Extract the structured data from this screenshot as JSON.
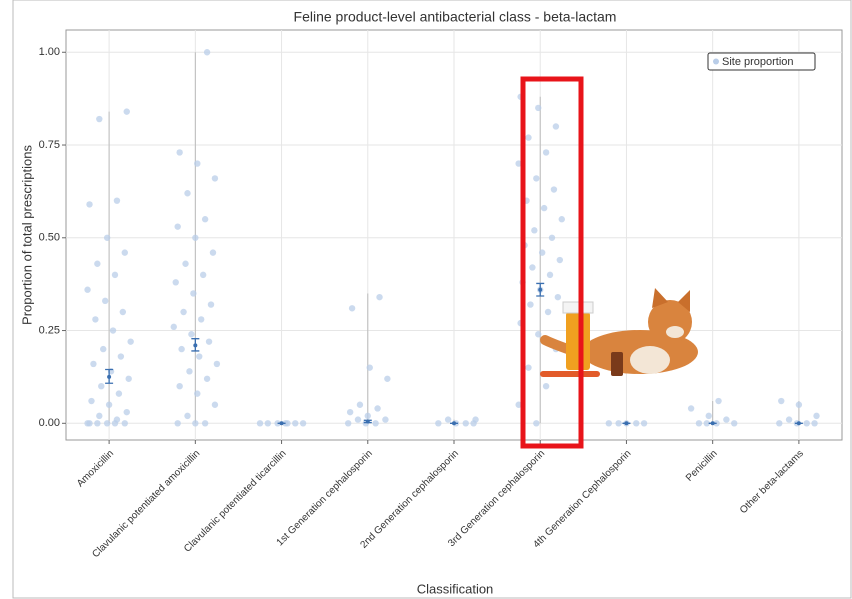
{
  "chart_data": {
    "type": "strip",
    "title": "Feline product-level antibacterial class - beta-lactam",
    "xlabel": "Classification",
    "ylabel": "Proportion of total prescriptions",
    "categories": [
      "Amoxicillin",
      "Clavulanic potentiated amoxicillin",
      "Clavulanic potentiated ticarcillin",
      "1st Generation cephalosporin",
      "2nd Generation cephalosporin",
      "3rd Generation cephalosporin",
      "4th Generation Cephalosporin",
      "Penicillin",
      "Other beta-lactams"
    ],
    "ylim": [
      -0.045,
      1.06
    ],
    "yticks": [
      {
        "value": 0,
        "label": "0.00"
      },
      {
        "value": 0.25,
        "label": "0.25"
      },
      {
        "value": 0.5,
        "label": "0.50"
      },
      {
        "value": 0.75,
        "label": "0.75"
      },
      {
        "value": 1,
        "label": "1.00"
      }
    ],
    "grid": true,
    "legend": "top-right",
    "series": [
      {
        "name": "Site proportion",
        "color": "#b9cde8",
        "values": [
          [
            0,
            0,
            0,
            0,
            0,
            0,
            0.01,
            0.02,
            0.03,
            0.05,
            0.06,
            0.08,
            0.1,
            0.12,
            0.14,
            0.16,
            0.18,
            0.2,
            0.22,
            0.25,
            0.28,
            0.3,
            0.33,
            0.36,
            0.4,
            0.43,
            0.46,
            0.5,
            0.59,
            0.6,
            0.82,
            0.84
          ],
          [
            0,
            0,
            0,
            0.02,
            0.05,
            0.08,
            0.1,
            0.12,
            0.14,
            0.16,
            0.18,
            0.2,
            0.22,
            0.24,
            0.26,
            0.28,
            0.3,
            0.32,
            0.35,
            0.38,
            0.4,
            0.43,
            0.46,
            0.5,
            0.53,
            0.55,
            0.62,
            0.66,
            0.7,
            0.73,
            1.0
          ],
          [
            0,
            0,
            0,
            0,
            0,
            0,
            0
          ],
          [
            0,
            0,
            0,
            0.01,
            0.01,
            0.02,
            0.03,
            0.04,
            0.05,
            0.12,
            0.15,
            0.31,
            0.34
          ],
          [
            0,
            0,
            0,
            0,
            0.01,
            0.01
          ],
          [
            0,
            0.05,
            0.1,
            0.15,
            0.2,
            0.24,
            0.27,
            0.3,
            0.32,
            0.34,
            0.36,
            0.38,
            0.4,
            0.42,
            0.44,
            0.46,
            0.48,
            0.5,
            0.52,
            0.55,
            0.58,
            0.6,
            0.63,
            0.66,
            0.7,
            0.73,
            0.77,
            0.8,
            0.85,
            0.88
          ],
          [
            0,
            0,
            0,
            0,
            0
          ],
          [
            0,
            0,
            0,
            0,
            0.01,
            0.02,
            0.04,
            0.06
          ],
          [
            0,
            0,
            0,
            0,
            0.01,
            0.02,
            0.05,
            0.06
          ]
        ]
      }
    ],
    "mins": [
      0,
      0,
      0,
      0,
      0,
      0,
      0,
      0,
      0
    ],
    "maxs": [
      0.84,
      1.0,
      0,
      0.35,
      0.01,
      0.88,
      0,
      0.06,
      0.06
    ],
    "means": [
      0.125,
      0.21,
      0,
      0.005,
      0,
      0.36,
      0,
      0,
      0
    ],
    "ci_lower": [
      0.108,
      0.195,
      0,
      0.002,
      0,
      0.343,
      0,
      0,
      0
    ],
    "ci_upper": [
      0.145,
      0.228,
      0,
      0.008,
      0,
      0.377,
      0,
      0,
      0
    ],
    "mean_color": "#3a6fb0"
  }
}
